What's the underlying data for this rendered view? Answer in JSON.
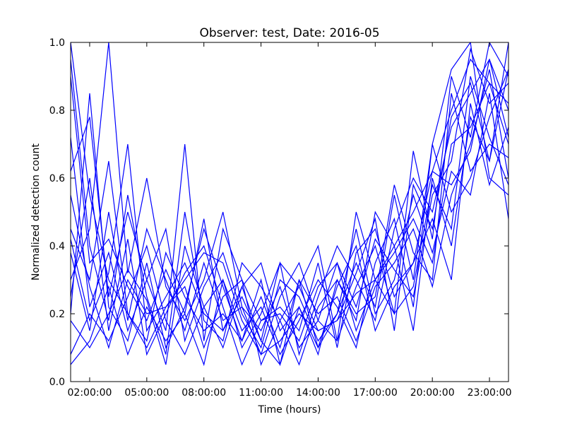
{
  "chart_data": {
    "type": "line",
    "title": "Observer: test, Date: 2016-05",
    "xlabel": "Time (hours)",
    "ylabel": "Normalized detection count",
    "x_unit": "hours",
    "xlim": [
      "01:00:00",
      "24:00:00"
    ],
    "ylim": [
      0,
      1.0
    ],
    "x_tick_labels": [
      "02:00:00",
      "05:00:00",
      "08:00:00",
      "11:00:00",
      "14:00:00",
      "17:00:00",
      "20:00:00",
      "23:00:00"
    ],
    "x_ticks": [
      "02:00:00",
      "05:00:00",
      "08:00:00",
      "11:00:00",
      "14:00:00",
      "17:00:00",
      "20:00:00",
      "23:00:00"
    ],
    "y_ticks": [
      0.0,
      0.2,
      0.4,
      0.6,
      0.8,
      1.0
    ],
    "y_tick_labels": [
      "0.0",
      "0.2",
      "0.4",
      "0.6",
      "0.8",
      "1.0"
    ],
    "grid": false,
    "legend": "none",
    "line_color": "#0000ff",
    "series": [
      {
        "x": [
          1,
          2,
          3,
          4,
          5,
          6,
          7,
          8,
          9,
          10,
          11,
          12,
          13,
          14,
          15,
          16,
          17,
          18,
          19,
          20,
          21,
          22,
          23,
          24
        ],
        "values": [
          1.0,
          0.55,
          0.3,
          0.2,
          0.1,
          0.22,
          0.3,
          0.38,
          0.35,
          0.18,
          0.08,
          0.12,
          0.2,
          0.15,
          0.18,
          0.26,
          0.3,
          0.4,
          0.5,
          0.62,
          0.8,
          0.95,
          0.88,
          0.7
        ]
      },
      {
        "x": [
          1,
          2,
          3,
          4,
          5,
          6,
          7,
          8,
          9,
          10,
          11,
          12,
          13,
          14,
          15,
          16,
          17,
          18,
          19,
          20,
          21,
          22,
          23,
          24
        ],
        "values": [
          0.9,
          0.35,
          0.42,
          0.28,
          0.18,
          0.33,
          0.2,
          0.48,
          0.15,
          0.25,
          0.12,
          0.05,
          0.3,
          0.1,
          0.2,
          0.35,
          0.22,
          0.55,
          0.3,
          0.7,
          0.92,
          1.0,
          0.6,
          0.55
        ]
      },
      {
        "x": [
          1,
          2,
          3,
          4,
          5,
          6,
          7,
          8,
          9,
          10,
          11,
          12,
          13,
          14,
          15,
          16,
          17,
          18,
          19,
          20,
          21,
          22,
          23,
          24
        ],
        "values": [
          0.18,
          0.1,
          0.2,
          0.33,
          0.24,
          0.05,
          0.4,
          0.22,
          0.3,
          0.1,
          0.2,
          0.35,
          0.08,
          0.25,
          0.4,
          0.3,
          0.18,
          0.45,
          0.6,
          0.5,
          0.75,
          0.85,
          0.95,
          0.8
        ]
      },
      {
        "x": [
          1,
          2,
          3,
          4,
          5,
          6,
          7,
          8,
          9,
          10,
          11,
          12,
          13,
          14,
          15,
          16,
          17,
          18,
          19,
          20,
          21,
          22,
          23,
          24
        ],
        "values": [
          0.62,
          0.78,
          0.25,
          0.5,
          0.3,
          0.15,
          0.7,
          0.12,
          0.45,
          0.3,
          0.05,
          0.18,
          0.28,
          0.4,
          0.12,
          0.5,
          0.3,
          0.2,
          0.68,
          0.42,
          0.9,
          0.72,
          1.0,
          0.9
        ]
      },
      {
        "x": [
          1,
          2,
          3,
          4,
          5,
          6,
          7,
          8,
          9,
          10,
          11,
          12,
          13,
          14,
          15,
          16,
          17,
          18,
          19,
          20,
          21,
          22,
          23,
          24
        ],
        "values": [
          0.3,
          0.45,
          1.0,
          0.32,
          0.6,
          0.28,
          0.18,
          0.3,
          0.5,
          0.22,
          0.15,
          0.28,
          0.1,
          0.18,
          0.35,
          0.22,
          0.42,
          0.33,
          0.25,
          0.55,
          0.65,
          0.98,
          0.82,
          0.88
        ]
      },
      {
        "x": [
          1,
          2,
          3,
          4,
          5,
          6,
          7,
          8,
          9,
          10,
          11,
          12,
          13,
          14,
          15,
          16,
          17,
          18,
          19,
          20,
          21,
          22,
          23,
          24
        ],
        "values": [
          0.08,
          0.2,
          0.12,
          0.25,
          0.4,
          0.18,
          0.08,
          0.22,
          0.1,
          0.28,
          0.35,
          0.15,
          0.22,
          0.08,
          0.3,
          0.18,
          0.5,
          0.4,
          0.15,
          0.6,
          0.4,
          0.78,
          0.65,
          1.0
        ]
      },
      {
        "x": [
          1,
          2,
          3,
          4,
          5,
          6,
          7,
          8,
          9,
          10,
          11,
          12,
          13,
          14,
          15,
          16,
          17,
          18,
          19,
          20,
          21,
          22,
          23,
          24
        ],
        "values": [
          0.45,
          0.3,
          0.65,
          0.2,
          0.12,
          0.38,
          0.25,
          0.15,
          0.2,
          0.12,
          0.25,
          0.1,
          0.3,
          0.2,
          0.25,
          0.12,
          0.28,
          0.35,
          0.45,
          0.28,
          0.55,
          0.7,
          0.92,
          0.6
        ]
      },
      {
        "x": [
          1,
          2,
          3,
          4,
          5,
          6,
          7,
          8,
          9,
          10,
          11,
          12,
          13,
          14,
          15,
          16,
          17,
          18,
          19,
          20,
          21,
          22,
          23,
          24
        ],
        "values": [
          0.25,
          0.6,
          0.15,
          0.42,
          0.08,
          0.2,
          0.32,
          0.4,
          0.22,
          0.05,
          0.18,
          0.22,
          0.15,
          0.35,
          0.1,
          0.38,
          0.45,
          0.25,
          0.35,
          0.48,
          0.3,
          0.82,
          0.58,
          0.75
        ]
      },
      {
        "x": [
          1,
          2,
          3,
          4,
          5,
          6,
          7,
          8,
          9,
          10,
          11,
          12,
          13,
          14,
          15,
          16,
          17,
          18,
          19,
          20,
          21,
          22,
          23,
          24
        ],
        "values": [
          0.72,
          0.22,
          0.38,
          0.15,
          0.3,
          0.45,
          0.12,
          0.28,
          0.38,
          0.2,
          0.1,
          0.3,
          0.25,
          0.12,
          0.2,
          0.45,
          0.2,
          0.3,
          0.55,
          0.38,
          0.62,
          0.55,
          0.85,
          0.48
        ]
      },
      {
        "x": [
          1,
          2,
          3,
          4,
          5,
          6,
          7,
          8,
          9,
          10,
          11,
          12,
          13,
          14,
          15,
          16,
          17,
          18,
          19,
          20,
          21,
          22,
          23,
          24
        ],
        "values": [
          0.05,
          0.12,
          0.28,
          0.08,
          0.22,
          0.12,
          0.2,
          0.05,
          0.3,
          0.15,
          0.22,
          0.08,
          0.18,
          0.3,
          0.22,
          0.1,
          0.35,
          0.48,
          0.22,
          0.7,
          0.5,
          0.6,
          0.78,
          0.92
        ]
      },
      {
        "x": [
          1,
          2,
          3,
          4,
          5,
          6,
          7,
          8,
          9,
          10,
          11,
          12,
          13,
          14,
          15,
          16,
          17,
          18,
          19,
          20,
          21,
          22,
          23,
          24
        ],
        "values": [
          0.95,
          0.4,
          0.18,
          0.55,
          0.25,
          0.08,
          0.5,
          0.18,
          0.12,
          0.35,
          0.28,
          0.18,
          0.05,
          0.22,
          0.3,
          0.2,
          0.25,
          0.58,
          0.38,
          0.3,
          0.85,
          0.62,
          0.7,
          0.66
        ]
      },
      {
        "x": [
          1,
          2,
          3,
          4,
          5,
          6,
          7,
          8,
          9,
          10,
          11,
          12,
          13,
          14,
          15,
          16,
          17,
          18,
          19,
          20,
          21,
          22,
          23,
          24
        ],
        "values": [
          0.38,
          0.15,
          0.5,
          0.18,
          0.45,
          0.3,
          0.15,
          0.35,
          0.18,
          0.22,
          0.08,
          0.25,
          0.35,
          0.18,
          0.12,
          0.28,
          0.4,
          0.2,
          0.28,
          0.58,
          0.45,
          0.9,
          0.72,
          0.58
        ]
      },
      {
        "x": [
          1,
          2,
          3,
          4,
          5,
          6,
          7,
          8,
          9,
          10,
          11,
          12,
          13,
          14,
          15,
          16,
          17,
          18,
          19,
          20,
          21,
          22,
          23,
          24
        ],
        "values": [
          0.55,
          0.28,
          0.1,
          0.3,
          0.2,
          0.22,
          0.28,
          0.1,
          0.25,
          0.3,
          0.18,
          0.2,
          0.12,
          0.28,
          0.35,
          0.15,
          0.3,
          0.38,
          0.48,
          0.35,
          0.7,
          0.75,
          0.88,
          0.82
        ]
      },
      {
        "x": [
          1,
          2,
          3,
          4,
          5,
          6,
          7,
          8,
          9,
          10,
          11,
          12,
          13,
          14,
          15,
          16,
          17,
          18,
          19,
          20,
          21,
          22,
          23,
          24
        ],
        "values": [
          0.2,
          0.85,
          0.22,
          0.12,
          0.35,
          0.1,
          0.22,
          0.45,
          0.28,
          0.12,
          0.3,
          0.05,
          0.22,
          0.1,
          0.28,
          0.4,
          0.15,
          0.28,
          0.35,
          0.62,
          0.58,
          0.68,
          0.95,
          0.72
        ]
      },
      {
        "x": [
          1,
          2,
          3,
          4,
          5,
          6,
          7,
          8,
          9,
          10,
          11,
          12,
          13,
          14,
          15,
          16,
          17,
          18,
          19,
          20,
          21,
          22,
          23,
          24
        ],
        "values": [
          0.42,
          0.18,
          0.32,
          0.7,
          0.15,
          0.25,
          0.35,
          0.2,
          0.15,
          0.28,
          0.12,
          0.35,
          0.28,
          0.15,
          0.18,
          0.32,
          0.48,
          0.15,
          0.58,
          0.45,
          0.78,
          0.88,
          0.65,
          0.92
        ]
      }
    ]
  }
}
